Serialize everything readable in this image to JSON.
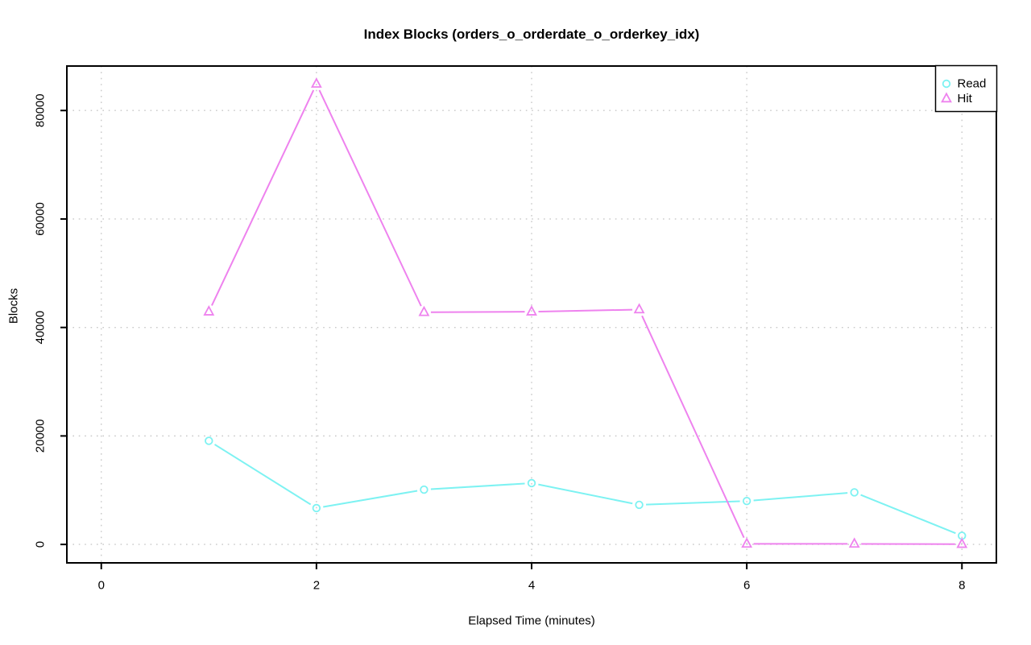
{
  "chart_data": {
    "type": "line",
    "title": "Index Blocks (orders_o_orderdate_o_orderkey_idx)",
    "xlabel": "Elapsed Time (minutes)",
    "ylabel": "Blocks",
    "x": [
      1,
      2,
      3,
      4,
      5,
      6,
      7,
      8
    ],
    "series": [
      {
        "name": "Read",
        "marker": "circle",
        "color": "#7DF2F2",
        "values": [
          19100,
          6700,
          10100,
          11300,
          7300,
          8000,
          9600,
          1600
        ]
      },
      {
        "name": "Hit",
        "marker": "triangle",
        "color": "#EE82EE",
        "values": [
          42900,
          84900,
          42800,
          42900,
          43300,
          100,
          100,
          50
        ]
      }
    ],
    "x_ticks": [
      0,
      2,
      4,
      6,
      8
    ],
    "y_ticks": [
      0,
      20000,
      40000,
      60000,
      80000
    ],
    "xlim": [
      -0.32,
      8.32
    ],
    "ylim": [
      -3400,
      88200
    ],
    "grid": true,
    "grid_color": "#c8c8c8",
    "axis_color": "#000000",
    "legend_position": "top-right"
  }
}
